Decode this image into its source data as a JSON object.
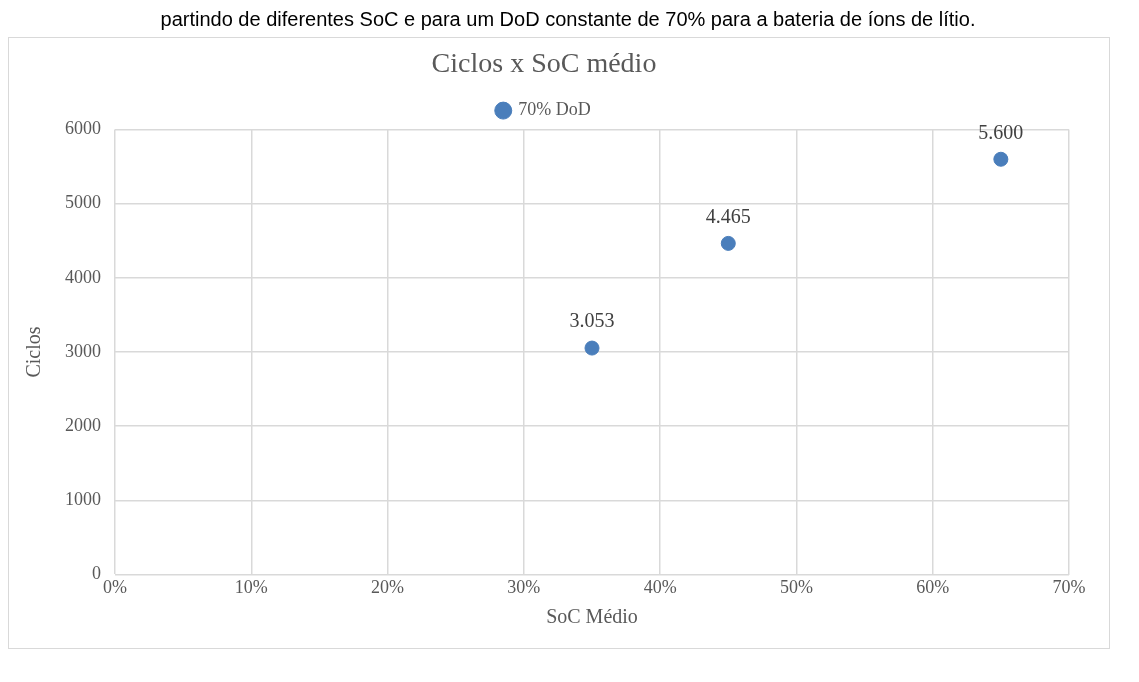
{
  "chart_data": {
    "type": "scatter",
    "title": "Ciclos x SoC médio",
    "xlabel": "SoC Médio",
    "ylabel": "Ciclos",
    "annotations": [
      "partindo de diferentes SoC e para um DoD constante de 70% para a bateria de íons de lítio."
    ],
    "x": [
      35,
      45,
      65
    ],
    "series": [
      {
        "name": "70% DoD",
        "color": "#4a7ebb",
        "values": [
          3053,
          4465,
          5600
        ],
        "value_labels": [
          "3.053",
          "4.465",
          "5.600"
        ]
      }
    ],
    "xlim": [
      0,
      70
    ],
    "xticks": [
      {
        "value": 0,
        "label": "0%"
      },
      {
        "value": 10,
        "label": "10%"
      },
      {
        "value": 20,
        "label": "20%"
      },
      {
        "value": 30,
        "label": "30%"
      },
      {
        "value": 40,
        "label": "40%"
      },
      {
        "value": 50,
        "label": "50%"
      },
      {
        "value": 60,
        "label": "60%"
      },
      {
        "value": 70,
        "label": "70%"
      }
    ],
    "ylim": [
      0,
      6000
    ],
    "yticks": [
      0,
      1000,
      2000,
      3000,
      4000,
      5000,
      6000
    ],
    "grid": true,
    "legend": "top",
    "marker": "circle"
  }
}
